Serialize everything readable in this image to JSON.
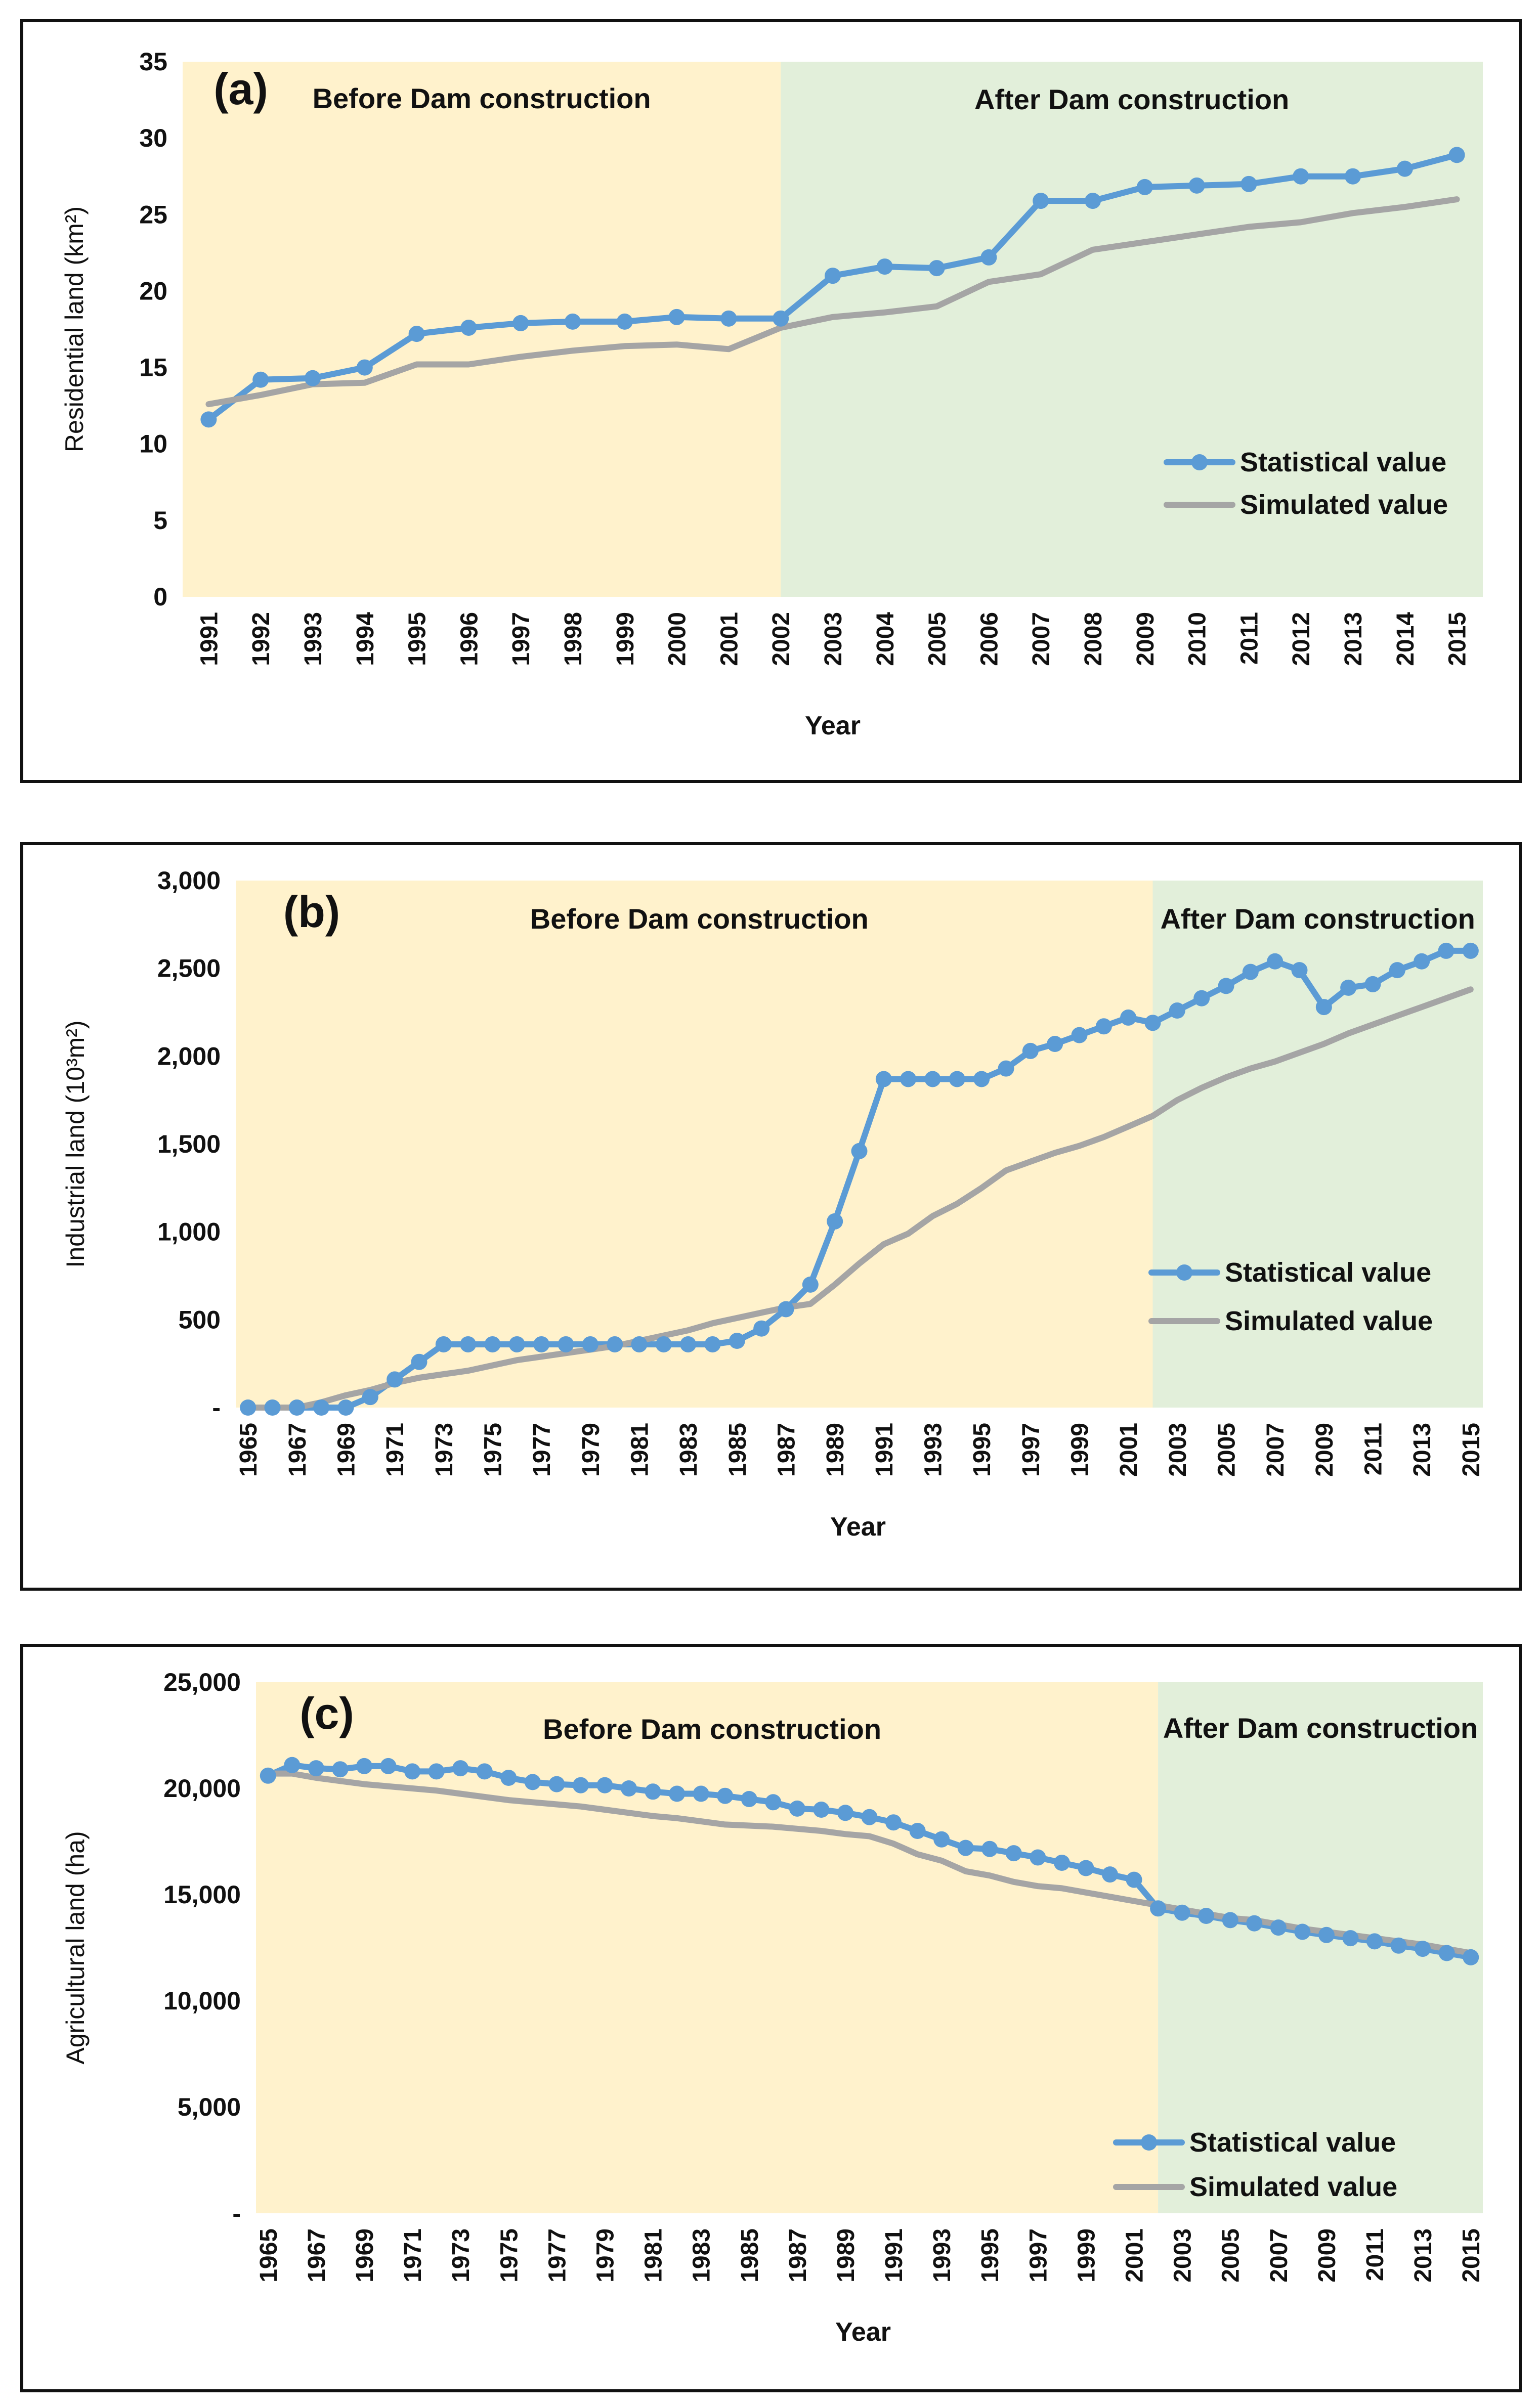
{
  "chart_data": [
    {
      "type": "line",
      "panel_label": "(a)",
      "before_label": "Before Dam construction",
      "after_label": "After Dam construction",
      "xlabel": "Year",
      "ylabel": "Residential land (km²)",
      "ylim": [
        0,
        35
      ],
      "yticks": [
        0,
        5,
        10,
        15,
        20,
        25,
        30,
        35
      ],
      "ytick_labels": [
        "0",
        "5",
        "10",
        "15",
        "20",
        "25",
        "30",
        "35"
      ],
      "x": [
        1991,
        1992,
        1993,
        1994,
        1995,
        1996,
        1997,
        1998,
        1999,
        2000,
        2001,
        2002,
        2003,
        2004,
        2005,
        2006,
        2007,
        2008,
        2009,
        2010,
        2011,
        2012,
        2013,
        2014,
        2015
      ],
      "xtick_labels": [
        "1991",
        "1992",
        "1993",
        "1994",
        "1995",
        "1996",
        "1997",
        "1998",
        "1999",
        "2000",
        "2001",
        "2002",
        "2003",
        "2004",
        "2005",
        "2006",
        "2007",
        "2008",
        "2009",
        "2010",
        "2011",
        "2012",
        "2013",
        "2014",
        "2015"
      ],
      "dam_year": 2002,
      "series": [
        {
          "name": "Statistical value",
          "color": "#5B9BD5",
          "markers": true,
          "values": [
            11.6,
            14.2,
            14.3,
            15.0,
            17.2,
            17.6,
            17.9,
            18.0,
            18.0,
            18.3,
            18.2,
            18.2,
            21.0,
            21.6,
            21.5,
            22.2,
            25.9,
            25.9,
            26.8,
            26.9,
            27.0,
            27.5,
            27.5,
            28.0,
            28.9
          ]
        },
        {
          "name": "Simulated value",
          "color": "#A5A5A5",
          "markers": false,
          "values": [
            12.6,
            13.2,
            13.9,
            14.0,
            15.2,
            15.2,
            15.7,
            16.1,
            16.4,
            16.5,
            16.2,
            17.6,
            18.3,
            18.6,
            19.0,
            20.6,
            21.1,
            22.7,
            23.2,
            23.7,
            24.2,
            24.5,
            25.1,
            25.5,
            26.0
          ]
        }
      ]
    },
    {
      "type": "line",
      "panel_label": "(b)",
      "before_label": "Before Dam construction",
      "after_label": "After Dam construction",
      "xlabel": "Year",
      "ylabel": "Industrial land (10³m²)",
      "ylim": [
        0,
        3000
      ],
      "yticks": [
        0,
        500,
        1000,
        1500,
        2000,
        2500,
        3000
      ],
      "ytick_labels": [
        "-",
        "500",
        "1,000",
        "1,500",
        "2,000",
        "2,500",
        "3,000"
      ],
      "x": [
        1965,
        1966,
        1967,
        1968,
        1969,
        1970,
        1971,
        1972,
        1973,
        1974,
        1975,
        1976,
        1977,
        1978,
        1979,
        1980,
        1981,
        1982,
        1983,
        1984,
        1985,
        1986,
        1987,
        1988,
        1989,
        1990,
        1991,
        1992,
        1993,
        1994,
        1995,
        1996,
        1997,
        1998,
        1999,
        2000,
        2001,
        2002,
        2003,
        2004,
        2005,
        2006,
        2007,
        2008,
        2009,
        2010,
        2011,
        2012,
        2013,
        2014,
        2015
      ],
      "xtick_labels": [
        "1965",
        "1967",
        "1969",
        "1971",
        "1973",
        "1975",
        "1977",
        "1979",
        "1981",
        "1983",
        "1985",
        "1987",
        "1989",
        "1991",
        "1993",
        "1995",
        "1997",
        "1999",
        "2001",
        "2003",
        "2005",
        "2007",
        "2009",
        "2011",
        "2013",
        "2015"
      ],
      "dam_year": 2002,
      "series": [
        {
          "name": "Statistical value",
          "color": "#5B9BD5",
          "markers": true,
          "values": [
            0,
            0,
            0,
            0,
            0,
            60,
            160,
            260,
            360,
            360,
            360,
            360,
            360,
            360,
            360,
            360,
            360,
            360,
            360,
            360,
            380,
            450,
            560,
            700,
            1060,
            1460,
            1870,
            1870,
            1870,
            1870,
            1870,
            1930,
            2030,
            2070,
            2120,
            2170,
            2220,
            2190,
            2260,
            2330,
            2400,
            2480,
            2540,
            2490,
            2280,
            2390,
            2410,
            2490,
            2540,
            2600,
            2600
          ]
        },
        {
          "name": "Simulated value",
          "color": "#A5A5A5",
          "markers": false,
          "values": [
            0,
            0,
            0,
            30,
            70,
            100,
            140,
            170,
            190,
            210,
            240,
            270,
            290,
            310,
            330,
            350,
            380,
            410,
            440,
            480,
            510,
            540,
            570,
            590,
            700,
            820,
            930,
            990,
            1090,
            1160,
            1250,
            1350,
            1400,
            1450,
            1490,
            1540,
            1600,
            1660,
            1750,
            1820,
            1880,
            1930,
            1970,
            2020,
            2070,
            2130,
            2180,
            2230,
            2280,
            2330,
            2380
          ]
        }
      ]
    },
    {
      "type": "line",
      "panel_label": "(c)",
      "before_label": "Before Dam construction",
      "after_label": "After Dam construction",
      "xlabel": "Year",
      "ylabel": "Agricultural land (ha)",
      "ylim": [
        0,
        25000
      ],
      "yticks": [
        0,
        5000,
        10000,
        15000,
        20000,
        25000
      ],
      "ytick_labels": [
        "-",
        "5,000",
        "10,000",
        "15,000",
        "20,000",
        "25,000"
      ],
      "x": [
        1965,
        1966,
        1967,
        1968,
        1969,
        1970,
        1971,
        1972,
        1973,
        1974,
        1975,
        1976,
        1977,
        1978,
        1979,
        1980,
        1981,
        1982,
        1983,
        1984,
        1985,
        1986,
        1987,
        1988,
        1989,
        1990,
        1991,
        1992,
        1993,
        1994,
        1995,
        1996,
        1997,
        1998,
        1999,
        2000,
        2001,
        2002,
        2003,
        2004,
        2005,
        2006,
        2007,
        2008,
        2009,
        2010,
        2011,
        2012,
        2013,
        2014,
        2015
      ],
      "xtick_labels": [
        "1965",
        "1967",
        "1969",
        "1971",
        "1973",
        "1975",
        "1977",
        "1979",
        "1981",
        "1983",
        "1985",
        "1987",
        "1989",
        "1991",
        "1993",
        "1995",
        "1997",
        "1999",
        "2001",
        "2003",
        "2005",
        "2007",
        "2009",
        "2011",
        "2013",
        "2015"
      ],
      "dam_year": 2002,
      "series": [
        {
          "name": "Statistical value",
          "color": "#5B9BD5",
          "markers": true,
          "values": [
            20600,
            21100,
            20950,
            20900,
            21050,
            21050,
            20800,
            20800,
            20950,
            20800,
            20500,
            20300,
            20200,
            20150,
            20150,
            20000,
            19850,
            19750,
            19750,
            19650,
            19500,
            19350,
            19050,
            19000,
            18850,
            18650,
            18400,
            18000,
            17600,
            17200,
            17150,
            16950,
            16750,
            16500,
            16250,
            15950,
            15700,
            14350,
            14150,
            14000,
            13800,
            13650,
            13450,
            13250,
            13100,
            12950,
            12800,
            12600,
            12450,
            12250,
            12050
          ]
        },
        {
          "name": "Simulated value",
          "color": "#A5A5A5",
          "markers": false,
          "values": [
            20700,
            20700,
            20500,
            20350,
            20200,
            20100,
            20000,
            19900,
            19750,
            19600,
            19450,
            19350,
            19250,
            19150,
            19000,
            18850,
            18700,
            18600,
            18450,
            18300,
            18250,
            18200,
            18100,
            18000,
            17850,
            17750,
            17400,
            16900,
            16600,
            16100,
            15900,
            15600,
            15400,
            15300,
            15100,
            14900,
            14700,
            14500,
            14300,
            14100,
            13900,
            13800,
            13600,
            13400,
            13250,
            13100,
            12950,
            12800,
            12650,
            12450,
            12250
          ]
        }
      ]
    }
  ]
}
